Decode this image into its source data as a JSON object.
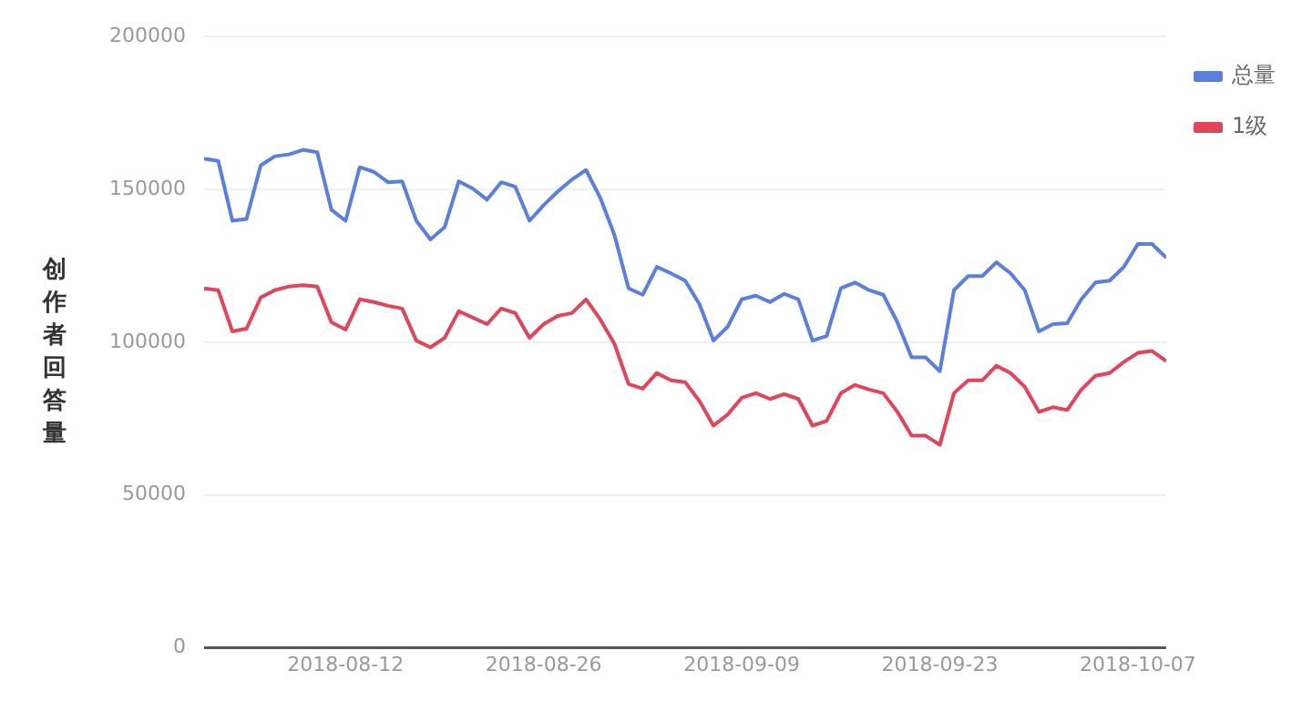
{
  "chart_data": {
    "type": "line",
    "ylabel": "创作者回答量",
    "x": [
      "2018-08-02",
      "2018-08-03",
      "2018-08-04",
      "2018-08-05",
      "2018-08-06",
      "2018-08-07",
      "2018-08-08",
      "2018-08-09",
      "2018-08-10",
      "2018-08-11",
      "2018-08-12",
      "2018-08-13",
      "2018-08-14",
      "2018-08-15",
      "2018-08-16",
      "2018-08-17",
      "2018-08-18",
      "2018-08-19",
      "2018-08-20",
      "2018-08-21",
      "2018-08-22",
      "2018-08-23",
      "2018-08-24",
      "2018-08-25",
      "2018-08-26",
      "2018-08-27",
      "2018-08-28",
      "2018-08-29",
      "2018-08-30",
      "2018-08-31",
      "2018-09-01",
      "2018-09-02",
      "2018-09-03",
      "2018-09-04",
      "2018-09-05",
      "2018-09-06",
      "2018-09-07",
      "2018-09-08",
      "2018-09-09",
      "2018-09-10",
      "2018-09-11",
      "2018-09-12",
      "2018-09-13",
      "2018-09-14",
      "2018-09-15",
      "2018-09-16",
      "2018-09-17",
      "2018-09-18",
      "2018-09-19",
      "2018-09-20",
      "2018-09-21",
      "2018-09-22",
      "2018-09-23",
      "2018-09-24",
      "2018-09-25",
      "2018-09-26",
      "2018-09-27",
      "2018-09-28",
      "2018-09-29",
      "2018-09-30",
      "2018-10-01",
      "2018-10-02",
      "2018-10-03",
      "2018-10-04",
      "2018-10-05",
      "2018-10-06",
      "2018-10-07",
      "2018-10-08",
      "2018-10-09"
    ],
    "series": [
      {
        "name": "总量",
        "color": "#5b7fdc",
        "values": [
          160000,
          159300,
          139700,
          140300,
          157800,
          160800,
          161400,
          162900,
          162100,
          143300,
          139700,
          157200,
          155700,
          152300,
          152600,
          139700,
          133600,
          137600,
          152600,
          150200,
          146600,
          152300,
          150800,
          139700,
          144800,
          149300,
          153200,
          156300,
          147200,
          135100,
          117600,
          115500,
          124600,
          122500,
          120100,
          112500,
          100500,
          105000,
          114000,
          115200,
          113100,
          115800,
          114000,
          100500,
          102000,
          117600,
          119500,
          117000,
          115500,
          106500,
          95000,
          95000,
          90500,
          117000,
          121600,
          121600,
          126100,
          122500,
          117000,
          103500,
          105900,
          106200,
          114000,
          119500,
          120100,
          124600,
          132100,
          132100,
          127600
        ]
      },
      {
        "name": "1级",
        "color": "#e0455a",
        "values": [
          117600,
          117000,
          103500,
          104400,
          114600,
          117000,
          118200,
          118600,
          118200,
          106500,
          104100,
          114000,
          113100,
          111900,
          111000,
          100500,
          98300,
          101400,
          110100,
          108000,
          105900,
          111000,
          109500,
          101400,
          105900,
          108600,
          109500,
          114000,
          107400,
          99500,
          86300,
          84800,
          89900,
          87500,
          86900,
          80800,
          72700,
          76300,
          81800,
          83300,
          81400,
          83000,
          81400,
          72700,
          74200,
          83300,
          86000,
          84500,
          83300,
          77200,
          69400,
          69400,
          66400,
          83300,
          87500,
          87500,
          92300,
          89900,
          85400,
          77200,
          78700,
          77800,
          84500,
          89000,
          89900,
          93500,
          96500,
          97100,
          93800
        ]
      }
    ],
    "xlim": [
      "2018-08-02",
      "2018-10-09"
    ],
    "xticks": [
      "2018-08-12",
      "2018-08-26",
      "2018-09-09",
      "2018-09-23",
      "2018-10-07"
    ],
    "ylim": [
      0,
      200000
    ],
    "yticks": [
      0,
      50000,
      100000,
      150000,
      200000
    ],
    "grid": "y",
    "legend": "top right",
    "marker": "none",
    "line_style": "solid"
  }
}
